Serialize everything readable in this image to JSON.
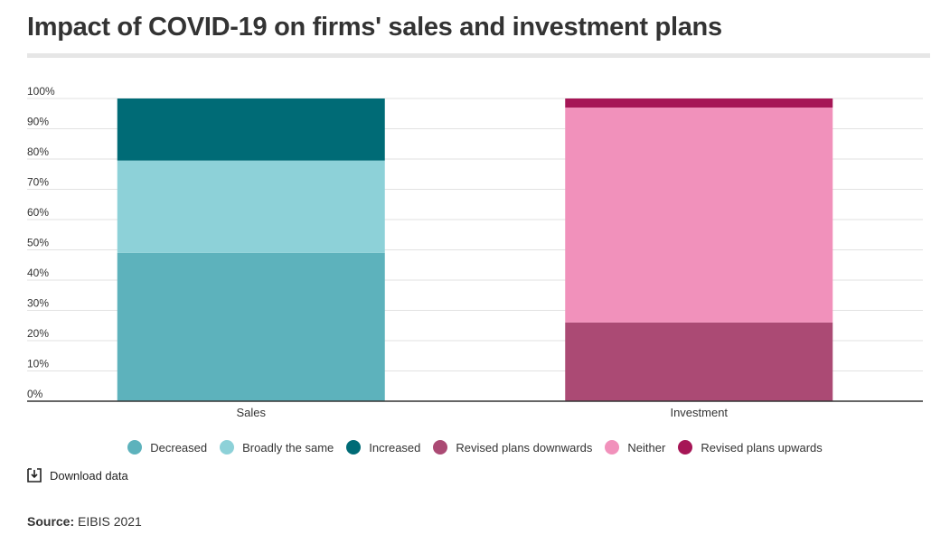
{
  "title": "Impact of COVID-19 on firms' sales and investment plans",
  "download_label": "Download data",
  "source_label": "Source:",
  "source_text": "EIBIS 2021",
  "icons": {
    "download": "download-icon"
  },
  "chart_data": {
    "type": "bar",
    "stacked": true,
    "categories": [
      "Sales",
      "Investment"
    ],
    "ylim": [
      0,
      100
    ],
    "yticks": [
      "0%",
      "10%",
      "20%",
      "30%",
      "40%",
      "50%",
      "60%",
      "70%",
      "80%",
      "90%",
      "100%"
    ],
    "grid": true,
    "legend_position": "bottom",
    "series": [
      {
        "name": "Decreased",
        "color": "#5db2bc",
        "values": [
          49,
          0
        ]
      },
      {
        "name": "Broadly the same",
        "color": "#8dd1d8",
        "values": [
          30.5,
          0
        ]
      },
      {
        "name": "Increased",
        "color": "#006b76",
        "values": [
          20.5,
          0
        ]
      },
      {
        "name": "Revised plans downwards",
        "color": "#ab4a74",
        "values": [
          0,
          26
        ]
      },
      {
        "name": "Neither",
        "color": "#f191bb",
        "values": [
          0,
          71
        ]
      },
      {
        "name": "Revised plans upwards",
        "color": "#a61656",
        "values": [
          0,
          3
        ]
      }
    ]
  }
}
